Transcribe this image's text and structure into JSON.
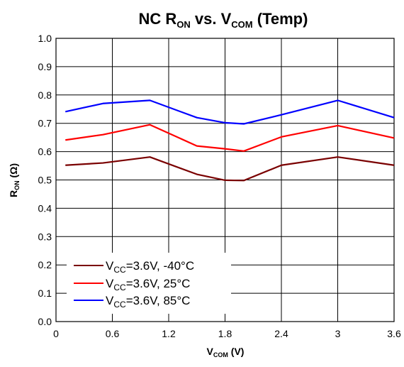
{
  "chart_data": {
    "type": "line",
    "title": {
      "main": "NC R",
      "sub": "ON",
      "mid": " vs. V",
      "sub2": "COM",
      "tail": " (Temp)"
    },
    "xlabel": {
      "main": "V",
      "sub": "COM",
      "tail": " (V)"
    },
    "ylabel": {
      "main": "R",
      "sub": "ON",
      "tail": " (Ω)"
    },
    "xlim": [
      0,
      3.6
    ],
    "ylim": [
      0,
      1.0
    ],
    "x_ticks": [
      "0",
      "0.6",
      "1.2",
      "1.8",
      "2.4",
      "3",
      "3.6"
    ],
    "y_ticks": [
      "0.0",
      "0.1",
      "0.2",
      "0.3",
      "0.4",
      "0.5",
      "0.6",
      "0.7",
      "0.8",
      "0.9",
      "1.0"
    ],
    "grid": {
      "x": true,
      "y": true
    },
    "legend_position": "bottom-left",
    "series": [
      {
        "legend": {
          "main": "V",
          "sub": "CC",
          "tail": "=3.6V, -40°C"
        },
        "color": "#7a0000",
        "x": [
          0.1,
          0.5,
          1.0,
          1.5,
          1.8,
          2.0,
          2.4,
          3.0,
          3.6
        ],
        "y": [
          0.552,
          0.56,
          0.581,
          0.52,
          0.499,
          0.498,
          0.552,
          0.581,
          0.552
        ]
      },
      {
        "legend": {
          "main": "V",
          "sub": "CC",
          "tail": "=3.6V, 25°C"
        },
        "color": "#ff0000",
        "x": [
          0.1,
          0.5,
          1.0,
          1.5,
          1.8,
          2.0,
          2.4,
          3.0,
          3.6
        ],
        "y": [
          0.641,
          0.66,
          0.695,
          0.62,
          0.61,
          0.602,
          0.652,
          0.692,
          0.648
        ]
      },
      {
        "legend": {
          "main": "V",
          "sub": "CC",
          "tail": "=3.6V,  85°C"
        },
        "color": "#0000ff",
        "x": [
          0.1,
          0.5,
          1.0,
          1.5,
          1.8,
          2.0,
          2.4,
          3.0,
          3.6
        ],
        "y": [
          0.741,
          0.77,
          0.781,
          0.72,
          0.702,
          0.698,
          0.73,
          0.781,
          0.72
        ]
      }
    ]
  }
}
